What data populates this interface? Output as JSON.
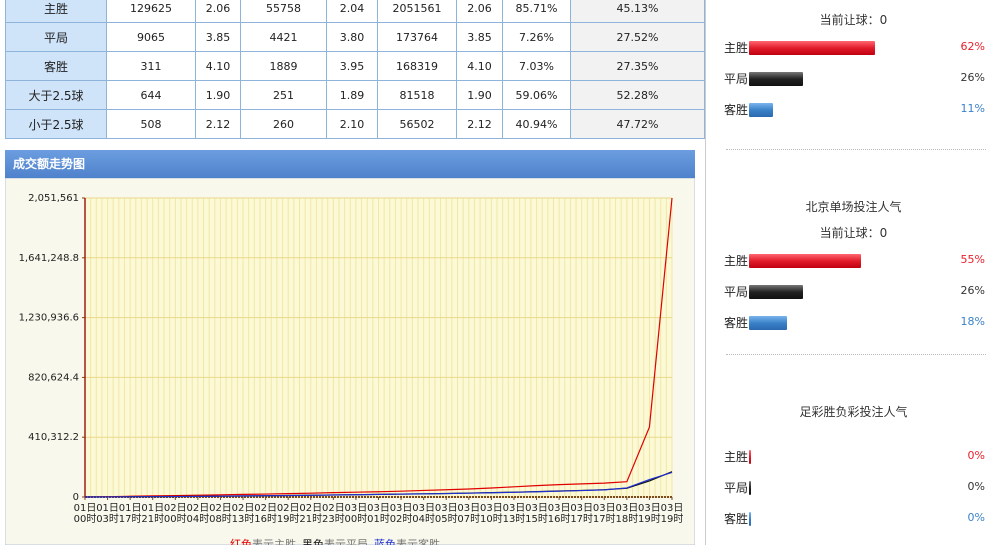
{
  "table": {
    "rows": [
      [
        "主胜",
        "129625",
        "2.06",
        "55758",
        "2.04",
        "2051561",
        "2.06",
        "85.71%",
        "45.13%"
      ],
      [
        "平局",
        "9065",
        "3.85",
        "4421",
        "3.80",
        "173764",
        "3.85",
        "7.26%",
        "27.52%"
      ],
      [
        "客胜",
        "311",
        "4.10",
        "1889",
        "3.95",
        "168319",
        "4.10",
        "7.03%",
        "27.35%"
      ],
      [
        "大于2.5球",
        "644",
        "1.90",
        "251",
        "1.89",
        "81518",
        "1.90",
        "59.06%",
        "52.28%"
      ],
      [
        "小于2.5球",
        "508",
        "2.12",
        "260",
        "2.10",
        "56502",
        "2.12",
        "40.94%",
        "47.72%"
      ]
    ]
  },
  "chart_data": {
    "type": "line",
    "title": "成交额走势图",
    "categories": [
      "01日00时",
      "01日03时",
      "01日17时",
      "01日21时",
      "02日00时",
      "02日04时",
      "02日08时",
      "02日13时",
      "02日16时",
      "02日19时",
      "02日21时",
      "02日23时",
      "03日00时",
      "03日01时",
      "03日02时",
      "03日04时",
      "03日05时",
      "03日07时",
      "03日10时",
      "03日13时",
      "03日15时",
      "03日16时",
      "03日17时",
      "03日17时",
      "03日18时",
      "03日19时",
      "03日19时"
    ],
    "ylim": [
      0,
      2051561
    ],
    "yticks": [
      0,
      {
        "value": 410312.2,
        "label": "410,312.2"
      },
      {
        "value": 820624.4,
        "label": "820,624.4"
      },
      {
        "value": 1230936.6,
        "label": "1,230,936.6"
      },
      {
        "value": 1641248.8,
        "label": "1,641,248.8"
      },
      {
        "value": 2051561,
        "label": "2,051,561"
      }
    ],
    "grid": true,
    "series": [
      {
        "name": "表示主胜",
        "color_word": "红色",
        "color": "#e00000",
        "values": [
          0,
          2000,
          5000,
          8000,
          10000,
          12000,
          15000,
          18000,
          20000,
          23000,
          26000,
          30000,
          33000,
          36000,
          40000,
          45000,
          50000,
          55000,
          62000,
          70000,
          78000,
          85000,
          90000,
          95000,
          105000,
          480000,
          2051561
        ]
      },
      {
        "name": "表示平局",
        "color_word": "黑色",
        "color": "#111111",
        "values": [
          0,
          500,
          1500,
          2500,
          3500,
          4500,
          6000,
          7500,
          9000,
          10500,
          12000,
          14000,
          16000,
          18000,
          20000,
          22000,
          24000,
          27000,
          30000,
          33000,
          37000,
          41000,
          45000,
          50000,
          60000,
          110000,
          173764
        ]
      },
      {
        "name": "表示客胜",
        "color_word": "蓝色",
        "color": "#1f2fd0",
        "values": [
          0,
          400,
          1200,
          2000,
          3000,
          4000,
          5500,
          7000,
          8500,
          10000,
          11500,
          13500,
          15500,
          17500,
          19500,
          21500,
          23500,
          26000,
          29000,
          32000,
          36000,
          40000,
          44000,
          49000,
          62000,
          120000,
          168319
        ]
      }
    ]
  },
  "popularity": [
    {
      "handicap": "当前让球：0",
      "bars": [
        {
          "label": "主胜",
          "value": 62,
          "value_label": "62%"
        },
        {
          "label": "平局",
          "value": 26,
          "value_label": "26%"
        },
        {
          "label": "客胜",
          "value": 11,
          "value_label": "11%"
        }
      ]
    },
    {
      "title": "北京单场投注人气",
      "handicap": "当前让球：0",
      "bars": [
        {
          "label": "主胜",
          "value": 55,
          "value_label": "55%"
        },
        {
          "label": "平局",
          "value": 26,
          "value_label": "26%"
        },
        {
          "label": "客胜",
          "value": 18,
          "value_label": "18%"
        }
      ]
    },
    {
      "title": "足彩胜负彩投注人气",
      "bars": [
        {
          "label": "主胜",
          "value": 0,
          "value_label": "0%"
        },
        {
          "label": "平局",
          "value": 0,
          "value_label": "0%"
        },
        {
          "label": "客胜",
          "value": 0,
          "value_label": "0%"
        }
      ]
    }
  ]
}
